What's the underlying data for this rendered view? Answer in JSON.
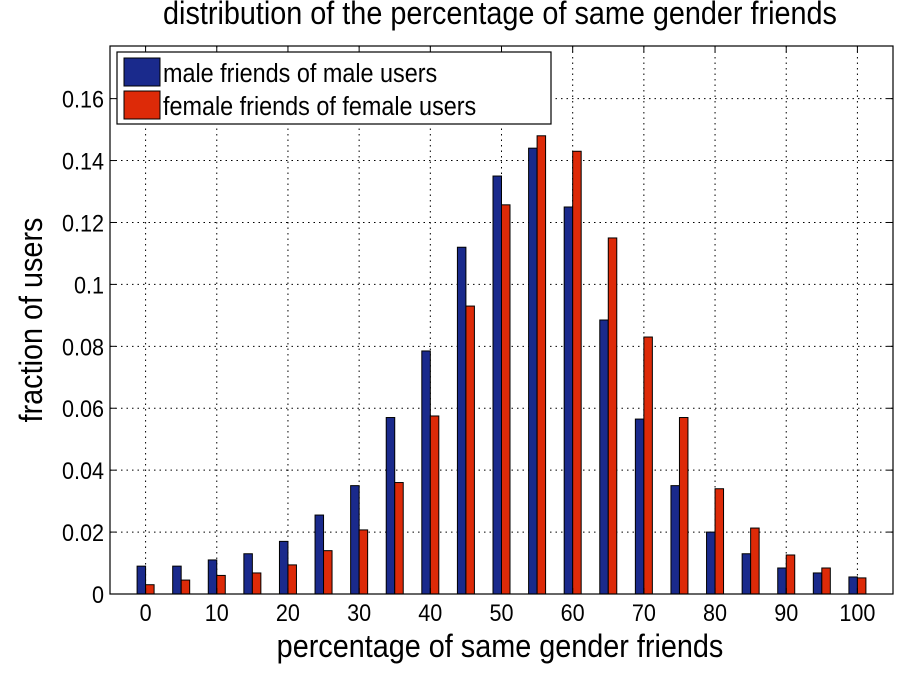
{
  "chart_data": {
    "type": "bar",
    "title": "distribution of the percentage of same gender friends",
    "xlabel": "percentage of same gender friends",
    "ylabel": "fraction of users",
    "x": [
      0,
      5,
      10,
      15,
      20,
      25,
      30,
      35,
      40,
      45,
      50,
      55,
      60,
      65,
      70,
      75,
      80,
      85,
      90,
      95,
      100
    ],
    "xticks": [
      0,
      10,
      20,
      30,
      40,
      50,
      60,
      70,
      80,
      90,
      100
    ],
    "xtick_labels": [
      "0",
      "10",
      "20",
      "30",
      "40",
      "50",
      "60",
      "70",
      "80",
      "90",
      "100"
    ],
    "yticks": [
      0,
      0.02,
      0.04,
      0.06,
      0.08,
      0.1,
      0.12,
      0.14,
      0.16
    ],
    "ytick_labels": [
      "0",
      "0.02",
      "0.04",
      "0.06",
      "0.08",
      "0.1",
      "0.12",
      "0.14",
      "0.16"
    ],
    "xlim": [
      -5,
      105
    ],
    "ylim": [
      0,
      0.177
    ],
    "grid": true,
    "legend_position": "top-left",
    "series": [
      {
        "name": "male friends of male users",
        "color": "#1a2a8c",
        "values": [
          0.009,
          0.009,
          0.011,
          0.013,
          0.017,
          0.0255,
          0.035,
          0.057,
          0.0785,
          0.112,
          0.135,
          0.144,
          0.125,
          0.0885,
          0.0565,
          0.035,
          0.02,
          0.013,
          0.0084,
          0.0068,
          0.0055
        ]
      },
      {
        "name": "female friends of female users",
        "color": "#dd2a08",
        "values": [
          0.003,
          0.0045,
          0.006,
          0.0068,
          0.0094,
          0.014,
          0.0207,
          0.036,
          0.0575,
          0.093,
          0.1257,
          0.148,
          0.143,
          0.115,
          0.083,
          0.057,
          0.034,
          0.0213,
          0.0126,
          0.0084,
          0.0052
        ]
      }
    ]
  }
}
